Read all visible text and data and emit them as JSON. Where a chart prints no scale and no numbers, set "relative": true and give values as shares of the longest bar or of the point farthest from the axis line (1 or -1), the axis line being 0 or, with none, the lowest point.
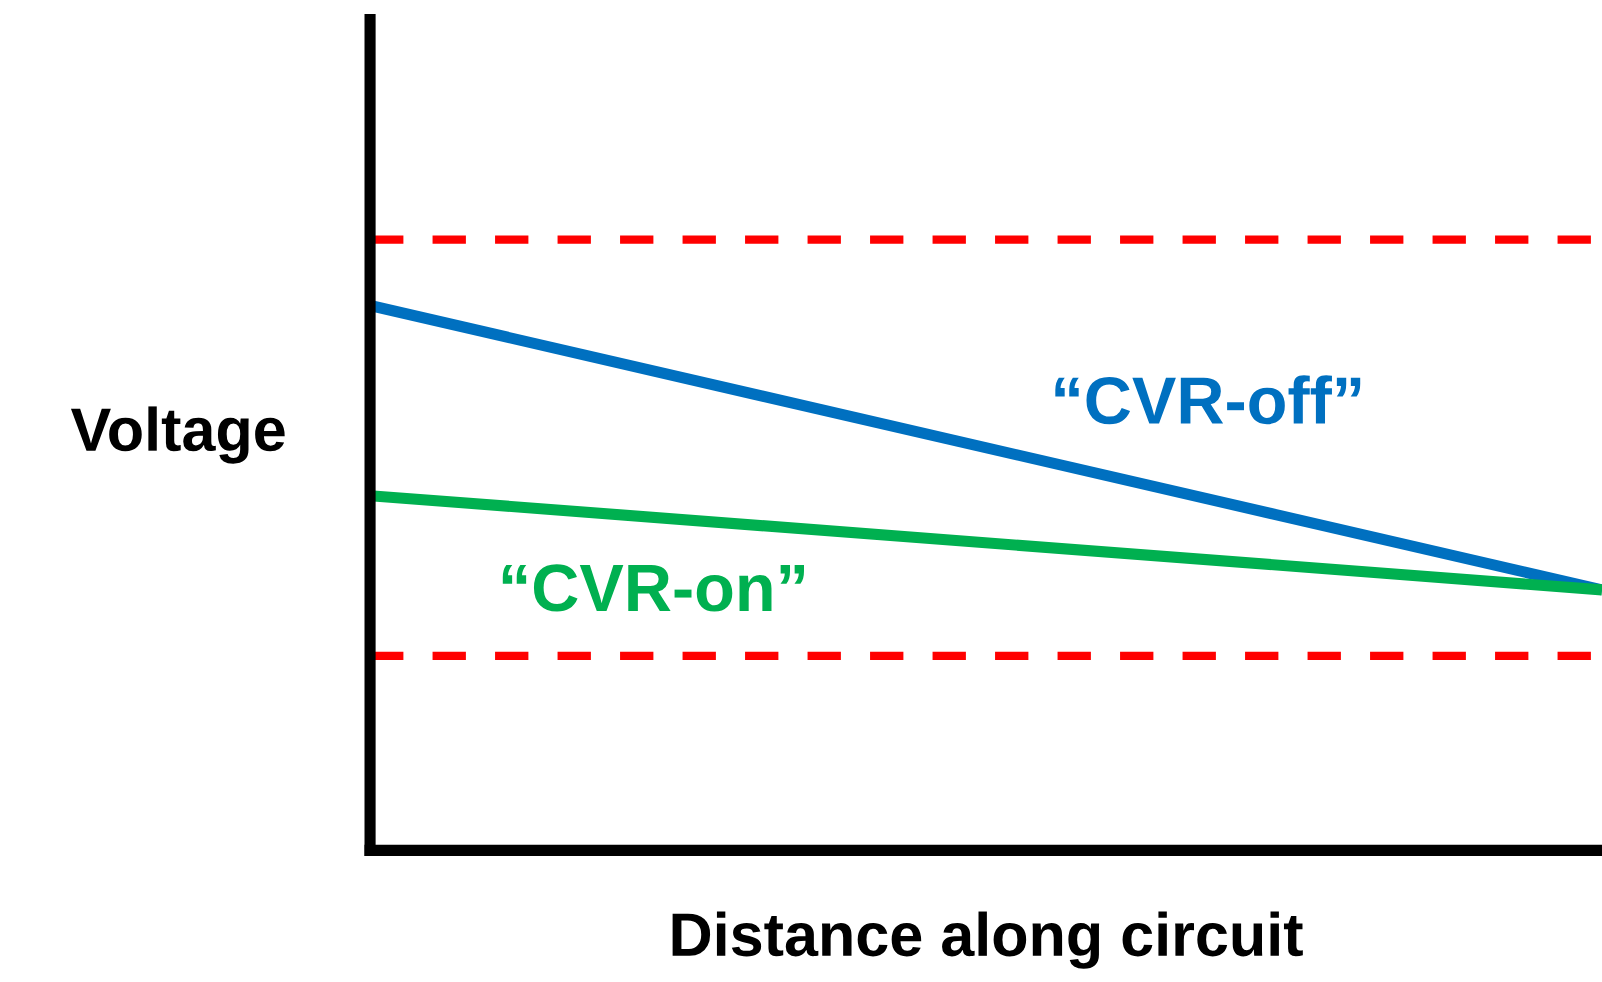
{
  "chart_data": {
    "type": "line",
    "relative": true,
    "xlabel": "Distance along circuit",
    "ylabel": "Voltage",
    "categories": [
      null,
      null
    ],
    "series": [
      {
        "name": "“CVR-off”",
        "color": "#0070c0",
        "values": [
          1,
          0.478
        ]
      },
      {
        "name": "“CVR-on”",
        "color": "#00b050",
        "values": [
          0.651,
          0.478
        ]
      }
    ],
    "ref_lines": [
      {
        "axis": "y",
        "value": 0,
        "color": "#000000",
        "line_style": "solid"
      },
      {
        "axis": "y",
        "value": 1.121,
        "color": "#ff0000",
        "line_style": "dashed"
      },
      {
        "axis": "y",
        "value": 0.357,
        "color": "#ff0000",
        "line_style": "dashed"
      }
    ],
    "legend": false,
    "marker": "none",
    "line_style": "solid"
  }
}
